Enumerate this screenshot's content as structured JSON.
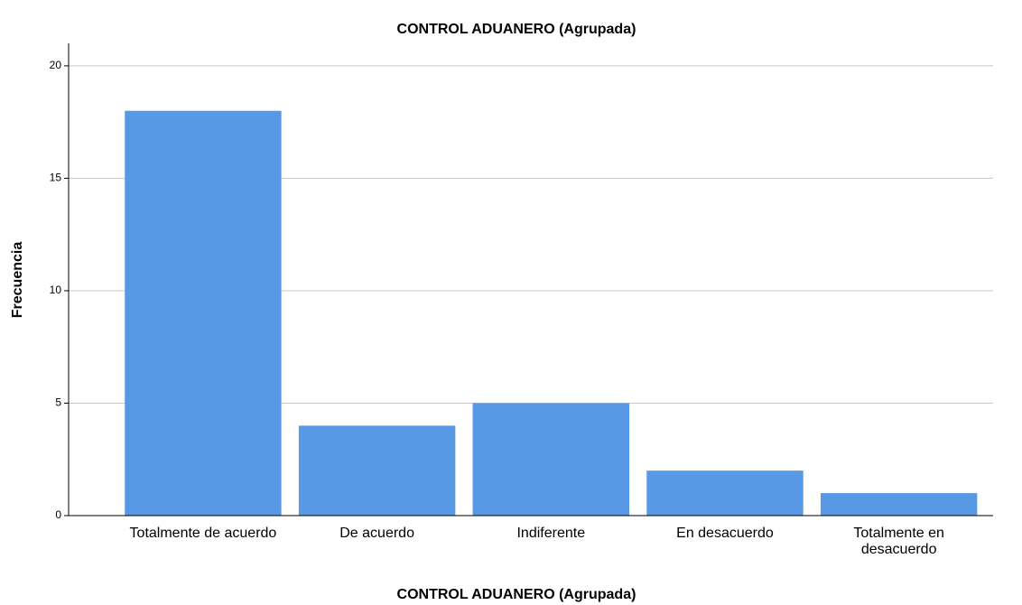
{
  "chart_data": {
    "type": "bar",
    "title": "CONTROL ADUANERO (Agrupada)",
    "x_label": "CONTROL ADUANERO (Agrupada)",
    "y_label": "Frecuencia",
    "categories": [
      "Totalmente de acuerdo",
      "De acuerdo",
      "Indiferente",
      "En desacuerdo",
      "Totalmente en desacuerdo"
    ],
    "values": [
      18,
      4,
      5,
      2,
      1
    ],
    "color": "#5899e6",
    "ylim": [
      0,
      21
    ],
    "yticks": [
      0,
      5,
      10,
      15,
      20
    ],
    "grid": true
  }
}
